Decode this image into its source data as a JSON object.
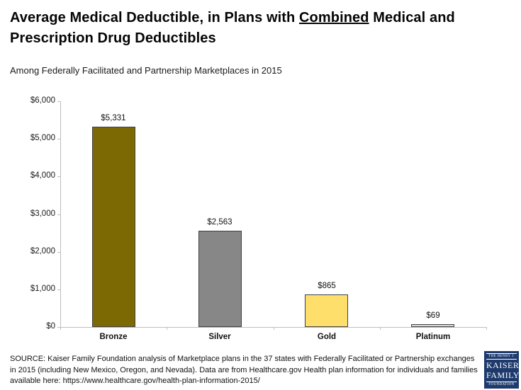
{
  "header": {
    "title_line1_prefix": "Average Medical Deductible, in Plans with ",
    "title_line1_underlined": "Combined",
    "title_line1_suffix": " Medical and",
    "title_line2": "Prescription Drug Deductibles",
    "subtitle": "Among Federally Facilitated and Partnership Marketplaces in 2015"
  },
  "chart_data": {
    "type": "bar",
    "title": "Average Medical Deductible, in Plans with Combined Medical and Prescription Drug Deductibles",
    "subtitle": "Among Federally Facilitated and Partnership Marketplaces in 2015",
    "categories": [
      "Bronze",
      "Silver",
      "Gold",
      "Platinum"
    ],
    "values": [
      5331,
      2563,
      865,
      69
    ],
    "data_labels": [
      "$5,331",
      "$2,563",
      "$865",
      "$69"
    ],
    "bar_colors": [
      "#7D6904",
      "#878787",
      "#FFDF6B",
      "#D9D9D9"
    ],
    "bar_border_color": "#404040",
    "xlabel": "",
    "ylabel": "",
    "ylim": [
      0,
      6000
    ],
    "yticks": [
      0,
      1000,
      2000,
      3000,
      4000,
      5000,
      6000
    ],
    "ytick_labels": [
      "$0",
      "$1,000",
      "$2,000",
      "$3,000",
      "$4,000",
      "$5,000",
      "$6,000"
    ],
    "grid": false,
    "legend": false,
    "axis_color": "#BFBFBF"
  },
  "footer": {
    "source_text": "SOURCE: Kaiser Family Foundation analysis of Marketplace plans in the 37 states with Federally Facilitated or Partnership exchanges in 2015 (including New Mexico, Oregon, and Nevada). Data are from Healthcare.gov Health plan information for individuals and families available here: https://www.healthcare.gov/health-plan-information-2015/",
    "logo": {
      "line1": "THE HENRY J.",
      "line2": "KAISER",
      "line3": "FAMILY",
      "line4": "FOUNDATION",
      "bg_color": "#1E3A6D"
    }
  }
}
